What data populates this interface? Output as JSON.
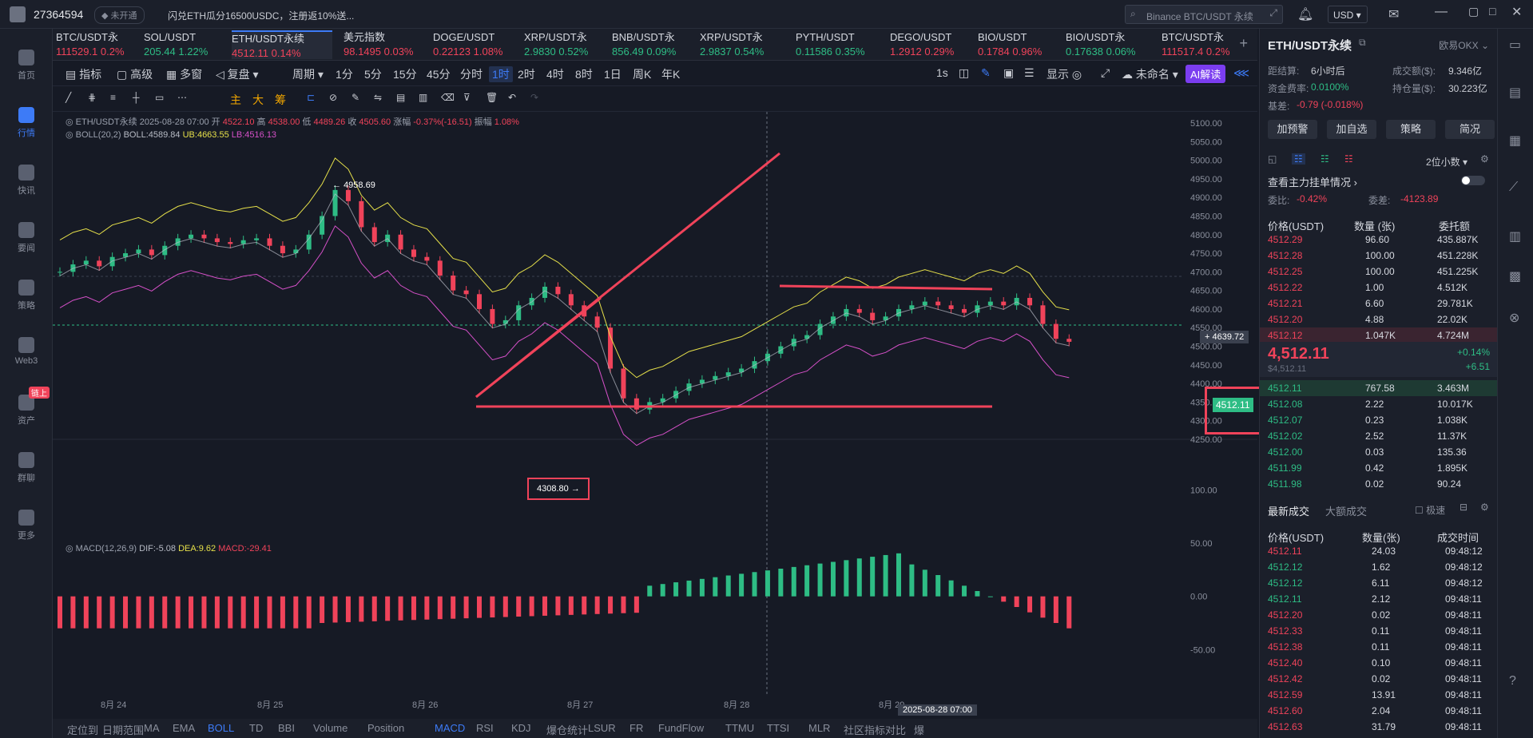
{
  "topbar": {
    "user_id": "27364594",
    "status": "未开通",
    "notice": "闪兑ETH瓜分16500USDC，注册返10%送...",
    "search_placeholder": "Binance BTC/USDT 永续",
    "currency": "USD"
  },
  "sidebar": {
    "items": [
      {
        "label": "首页",
        "icon": "home-icon"
      },
      {
        "label": "行情",
        "icon": "market-icon",
        "active": true
      },
      {
        "label": "快讯",
        "icon": "flash-icon"
      },
      {
        "label": "要闻",
        "icon": "news-icon"
      },
      {
        "label": "策略",
        "icon": "strategy-icon"
      },
      {
        "label": "Web3",
        "icon": "web3-icon"
      },
      {
        "label": "资产",
        "icon": "wallet-icon",
        "badge": "链上"
      },
      {
        "label": "群聊",
        "icon": "chat-icon"
      },
      {
        "label": "更多",
        "icon": "more-icon"
      }
    ]
  },
  "tickers": [
    {
      "name": "BTC/USDT永",
      "price": "111529.1",
      "change": "0.2%",
      "color": "red"
    },
    {
      "name": "SOL/USDT",
      "price": "205.44",
      "change": "1.22%",
      "color": "green"
    },
    {
      "name": "ETH/USDT永续",
      "price": "4512.11",
      "change": "0.14%",
      "color": "red",
      "selected": true
    },
    {
      "name": "美元指数",
      "price": "98.1495",
      "change": "0.03%",
      "color": "red"
    },
    {
      "name": "DOGE/USDT",
      "price": "0.22123",
      "change": "1.08%",
      "color": "red"
    },
    {
      "name": "XRP/USDT永",
      "price": "2.9830",
      "change": "0.52%",
      "color": "green"
    },
    {
      "name": "BNB/USDT永",
      "price": "856.49",
      "change": "0.09%",
      "color": "green"
    },
    {
      "name": "XRP/USDT永",
      "price": "2.9837",
      "change": "0.54%",
      "color": "green"
    },
    {
      "name": "PYTH/USDT",
      "price": "0.11586",
      "change": "0.35%",
      "color": "green"
    },
    {
      "name": "DEGO/USDT",
      "price": "1.2912",
      "change": "0.29%",
      "color": "red"
    },
    {
      "name": "BIO/USDT",
      "price": "0.1784",
      "change": "0.96%",
      "color": "red"
    },
    {
      "name": "BIO/USDT永",
      "price": "0.17638",
      "change": "0.06%",
      "color": "green"
    },
    {
      "name": "BTC/USDT永",
      "price": "111517.4",
      "change": "0.2%",
      "color": "red"
    }
  ],
  "toolbar": {
    "indicator": "指标",
    "advanced": "高级",
    "multi_window": "多窗",
    "replay": "复盘",
    "period": "周期",
    "intervals": [
      "1分",
      "5分",
      "15分",
      "45分",
      "分时",
      "1时",
      "2时",
      "4时",
      "8时",
      "1日",
      "周K",
      "年K"
    ],
    "selected_interval": "1时",
    "right_1s": "1s",
    "display": "显示",
    "unnamed": "未命名",
    "ai_button": "AI解读",
    "draw_labels": [
      "主",
      "大",
      "筹"
    ]
  },
  "chart_info": {
    "symbol": "ETH/USDT永续",
    "datetime": "2025-08-28 07:00",
    "open_label": "开",
    "open": "4522.10",
    "high_label": "高",
    "high": "4538.00",
    "low_label": "低",
    "low": "4489.26",
    "close_label": "收",
    "close": "4505.60",
    "change_label": "涨幅",
    "change": "-0.37%(-16.51)",
    "amp_label": "振幅",
    "amp": "1.08%",
    "boll_label": "BOLL(20,2)",
    "boll": "BOLL:4589.84",
    "ub": "UB:4663.55",
    "lb": "LB:4516.13",
    "macd_label": "MACD(12,26,9)",
    "dif": "DIF:-5.08",
    "dea": "DEA:9.62",
    "macd": "MACD:-29.41",
    "high_mark": "4958.69",
    "low_mark": "4308.80",
    "price_tag": "4512.11",
    "level_tag": "4639.72",
    "crosshair_time": "2025-08-28 07:00"
  },
  "chart_data": {
    "type": "candlestick",
    "y_axis": [
      "5100.00",
      "5050.00",
      "5000.00",
      "4950.00",
      "4900.00",
      "4850.00",
      "4800.00",
      "4750.00",
      "4700.00",
      "4650.00",
      "4600.00",
      "4550.00",
      "4500.00",
      "4450.00",
      "4400.00",
      "4350.00",
      "4300.00",
      "4250.00"
    ],
    "macd_axis": [
      "100.00",
      "50.00",
      "0.00",
      "-50.00"
    ],
    "x_axis": [
      "8月 24",
      "8月 25",
      "8月 26",
      "8月 27",
      "8月 28",
      "8月 29"
    ],
    "ylim": [
      4250,
      5100
    ],
    "close_series": [
      4700,
      4720,
      4730,
      4715,
      4740,
      4750,
      4760,
      4745,
      4770,
      4790,
      4800,
      4790,
      4780,
      4775,
      4785,
      4790,
      4770,
      4750,
      4760,
      4800,
      4850,
      4920,
      4890,
      4820,
      4780,
      4800,
      4760,
      4740,
      4730,
      4690,
      4650,
      4640,
      4600,
      4560,
      4570,
      4610,
      4630,
      4660,
      4640,
      4610,
      4580,
      4550,
      4440,
      4360,
      4330,
      4350,
      4360,
      4380,
      4400,
      4410,
      4420,
      4430,
      4440,
      4460,
      4480,
      4500,
      4520,
      4530,
      4560,
      4580,
      4600,
      4590,
      4570,
      4580,
      4600,
      4610,
      4620,
      4610,
      4600,
      4590,
      4610,
      4620,
      4610,
      4630,
      4610,
      4560,
      4520,
      4512
    ]
  },
  "bottom_tabs": [
    "定位到",
    "日期范围",
    "MA",
    "EMA",
    "BOLL",
    "TD",
    "BBI",
    "Volume",
    "Position",
    "MACD",
    "RSI",
    "KDJ",
    "爆仓统计",
    "LSUR",
    "FR",
    "FundFlow",
    "TTMU",
    "TTSI",
    "MLR",
    "社区指标",
    "对比",
    "爆"
  ],
  "right_panel": {
    "title": "ETH/USDT永续",
    "exchange": "欧易OKX",
    "settle_label": "距结算:",
    "settle": "6小时后",
    "vol_label": "成交额($):",
    "vol": "9.346亿",
    "rate_label": "资金费率:",
    "rate": "0.0100%",
    "oi_label": "持仓量($):",
    "oi": "30.223亿",
    "basis_label": "基差:",
    "basis": "-0.79 (-0.018%)",
    "buttons": [
      "加预警",
      "加自选",
      "策略",
      "简况"
    ],
    "decimals": "2位小数",
    "view_orders": "查看主力挂单情况",
    "ratio_label": "委比:",
    "ratio": "-0.42%",
    "diff_label": "委差:",
    "diff": "-4123.89",
    "book_headers": [
      "价格(USDT)",
      "数量 (张)",
      "委托额"
    ],
    "asks": [
      [
        "4512.29",
        "96.60",
        "435.887K"
      ],
      [
        "4512.28",
        "100.00",
        "451.228K"
      ],
      [
        "4512.25",
        "100.00",
        "451.225K"
      ],
      [
        "4512.22",
        "1.00",
        "4.512K"
      ],
      [
        "4512.21",
        "6.60",
        "29.781K"
      ],
      [
        "4512.20",
        "4.88",
        "22.02K"
      ],
      [
        "4512.12",
        "1.047K",
        "4.724M"
      ]
    ],
    "mid_price": "4,512.11",
    "mid_sub": "$4,512.11",
    "mid_pct": "+0.14%",
    "mid_chg": "+6.51",
    "bids": [
      [
        "4512.11",
        "767.58",
        "3.463M"
      ],
      [
        "4512.08",
        "2.22",
        "10.017K"
      ],
      [
        "4512.07",
        "0.23",
        "1.038K"
      ],
      [
        "4512.02",
        "2.52",
        "11.37K"
      ],
      [
        "4512.00",
        "0.03",
        "135.36"
      ],
      [
        "4511.99",
        "0.42",
        "1.895K"
      ],
      [
        "4511.98",
        "0.02",
        "90.24"
      ]
    ],
    "trades_tab": "最新成交",
    "big_tab": "大额成交",
    "fast_label": "极速",
    "trade_headers": [
      "价格(USDT)",
      "数量(张)",
      "成交时间"
    ],
    "trades": [
      [
        "4512.11",
        "24.03",
        "09:48:12",
        "red"
      ],
      [
        "4512.12",
        "1.62",
        "09:48:12",
        "green"
      ],
      [
        "4512.12",
        "6.11",
        "09:48:12",
        "green"
      ],
      [
        "4512.11",
        "2.12",
        "09:48:11",
        "green"
      ],
      [
        "4512.20",
        "0.02",
        "09:48:11",
        "red"
      ],
      [
        "4512.33",
        "0.11",
        "09:48:11",
        "red"
      ],
      [
        "4512.38",
        "0.11",
        "09:48:11",
        "red"
      ],
      [
        "4512.40",
        "0.10",
        "09:48:11",
        "red"
      ],
      [
        "4512.42",
        "0.02",
        "09:48:11",
        "red"
      ],
      [
        "4512.59",
        "13.91",
        "09:48:11",
        "red"
      ],
      [
        "4512.60",
        "2.04",
        "09:48:11",
        "red"
      ],
      [
        "4512.63",
        "31.79",
        "09:48:11",
        "red"
      ]
    ]
  }
}
